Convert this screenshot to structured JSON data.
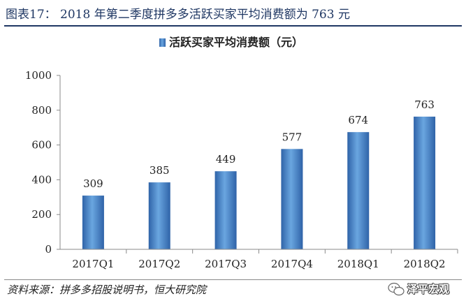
{
  "figure": {
    "title": "图表17：  2018 年第二季度拼多多活跃买家平均消费额为 763 元",
    "source": "资料来源：拼多多招股说明书，恒大研究院",
    "watermark": "泽平宏观"
  },
  "colors": {
    "bar": "#4a86c8",
    "bar_dark": "#2f63a8",
    "title": "#1f3763",
    "axis": "#8a8a8a"
  },
  "chart_data": {
    "type": "bar",
    "title": "",
    "xlabel": "",
    "ylabel": "",
    "legend": {
      "position": "top-center",
      "entries": [
        "活跃买家平均消费额（元）"
      ]
    },
    "categories": [
      "2017Q1",
      "2017Q2",
      "2017Q3",
      "2017Q4",
      "2018Q1",
      "2018Q2"
    ],
    "series": [
      {
        "name": "活跃买家平均消费额（元）",
        "values": [
          309,
          385,
          449,
          577,
          674,
          763
        ]
      }
    ],
    "ylim": [
      0,
      1000
    ],
    "yticks": [
      0,
      200,
      400,
      600,
      800,
      1000
    ],
    "grid": false,
    "data_labels": true
  }
}
